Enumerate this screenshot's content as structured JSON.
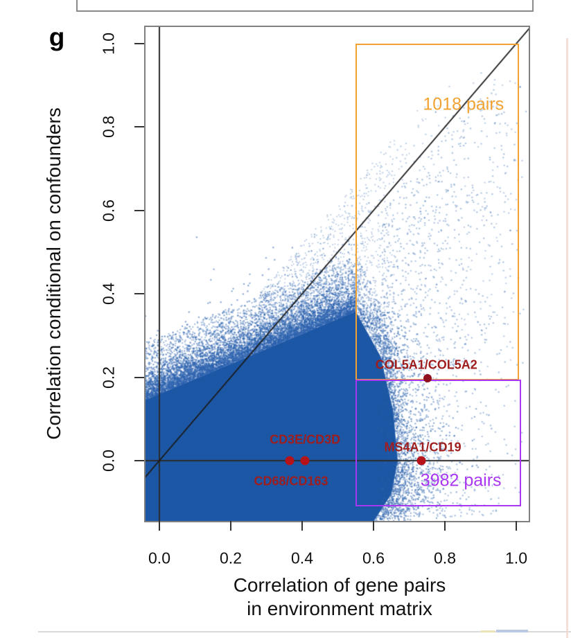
{
  "panel": {
    "label": "g"
  },
  "chart_data": {
    "type": "scatter",
    "xlabel_line1": "Correlation of gene pairs",
    "xlabel_line2": "in environment matrix",
    "ylabel": "Correlation conditional on confounders",
    "x_ticks": [
      "0.0",
      "0.2",
      "0.4",
      "0.6",
      "0.8",
      "1.0"
    ],
    "x_tick_values": [
      0,
      0.2,
      0.4,
      0.6,
      0.8,
      1.0
    ],
    "y_ticks": [
      "0.0",
      "0.2",
      "0.4",
      "0.6",
      "0.8",
      "1.0"
    ],
    "y_tick_values": [
      0,
      0.2,
      0.4,
      0.6,
      0.8,
      1.0
    ],
    "xlim": [
      -0.043,
      1.039
    ],
    "ylim": [
      -0.146,
      1.043
    ],
    "grid": false,
    "reference_lines": {
      "diagonal": {
        "from": [
          -0.15,
          -0.15
        ],
        "to": [
          1.1,
          1.1
        ],
        "color": "#1b1b1b"
      },
      "horizontal_y": 0,
      "vertical_x": 0,
      "line_color": "#2a2a2a"
    },
    "highlight_boxes": [
      {
        "id": "high-conditional",
        "label": "1018 pairs",
        "color": "#F2A232",
        "x0": 0.55,
        "x1": 1.0,
        "y0": 0.2,
        "y1": 1.0,
        "label_x": 0.852,
        "label_y": 0.854,
        "label_size": 25
      },
      {
        "id": "confounded",
        "label": "3982 pairs",
        "color": "#A936F0",
        "x0": 0.55,
        "x1": 1.005,
        "y0": -0.103,
        "y1": 0.194,
        "label_x": 0.845,
        "label_y": -0.048,
        "label_size": 25
      }
    ],
    "labeled_points": [
      {
        "name": "COL5A1/COL5A2",
        "x": 0.751,
        "y": 0.197,
        "label_x": 0.748,
        "label_y": 0.229,
        "dot_color": "#8F101C",
        "dot_d": 12
      },
      {
        "name": "CD3E/CD3D",
        "x": 0.408,
        "y": 0.0,
        "label_x": 0.408,
        "label_y": 0.05,
        "dot_color": "#B5121A",
        "dot_d": 13
      },
      {
        "name": "CD68/CD163",
        "x": 0.365,
        "y": 0.0,
        "label_x": 0.369,
        "label_y": -0.05,
        "dot_color": "#B5121A",
        "dot_d": 13
      },
      {
        "name": "MS4A1/CD19",
        "x": 0.734,
        "y": 0.0,
        "label_x": 0.738,
        "label_y": 0.032,
        "dot_color": "#B5121A",
        "dot_d": 13
      }
    ],
    "gene_label_color": "#9E1D1D",
    "point_cloud": {
      "seed": 1337,
      "core_color": "#1C57A5",
      "speckle_color": "#2E63AE",
      "solid_envelope": {
        "intercept": 0.16,
        "slope": 0.36,
        "x_end": 0.55
      },
      "right_boundary": [
        [
          0.55,
          0.358
        ],
        [
          0.62,
          0.25
        ],
        [
          0.655,
          0.12
        ],
        [
          0.668,
          0.0
        ],
        [
          0.65,
          -0.08
        ],
        [
          0.6,
          -0.146
        ]
      ],
      "layers": {
        "top_fuzz": {
          "n": 6000,
          "scale": 0.03,
          "alpha": 0.55,
          "r": 1.2
        },
        "right_fuzz": {
          "n": 1800,
          "scale": 0.045,
          "alpha": 0.5,
          "r": 1.2
        },
        "mid_speckle": {
          "n": 2600,
          "alpha": 0.4,
          "r": 1.2,
          "height": 0.12
        },
        "diag_sparse": {
          "n": 1000,
          "alpha": 0.32,
          "r": 1.1
        },
        "right_region": {
          "n": 3000,
          "alpha": 0.38,
          "r": 1.2
        },
        "upper_right_sparse": {
          "n": 300,
          "alpha": 0.3,
          "r": 1.2
        },
        "above_diag": {
          "n": 40,
          "alpha": 0.3,
          "r": 1.1
        },
        "top_right_strays": {
          "n": 14,
          "alpha": 0.35,
          "r": 1.3
        }
      }
    }
  }
}
